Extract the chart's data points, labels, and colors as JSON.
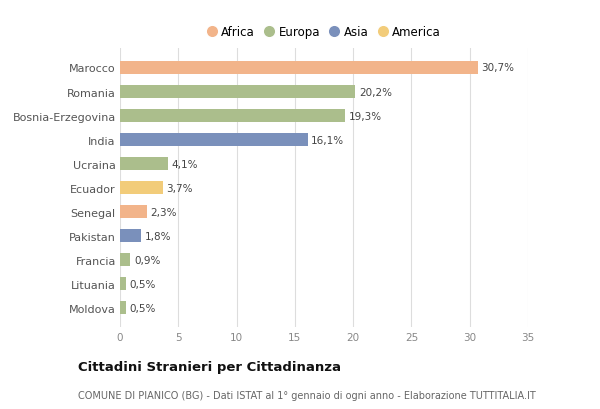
{
  "countries": [
    "Marocco",
    "Romania",
    "Bosnia-Erzegovina",
    "India",
    "Ucraina",
    "Ecuador",
    "Senegal",
    "Pakistan",
    "Francia",
    "Lituania",
    "Moldova"
  ],
  "values": [
    30.7,
    20.2,
    19.3,
    16.1,
    4.1,
    3.7,
    2.3,
    1.8,
    0.9,
    0.5,
    0.5
  ],
  "labels": [
    "30,7%",
    "20,2%",
    "19,3%",
    "16,1%",
    "4,1%",
    "3,7%",
    "2,3%",
    "1,8%",
    "0,9%",
    "0,5%",
    "0,5%"
  ],
  "continents": [
    "Africa",
    "Europa",
    "Europa",
    "Asia",
    "Europa",
    "America",
    "Africa",
    "Asia",
    "Europa",
    "Europa",
    "Europa"
  ],
  "continent_colors": {
    "Africa": "#F2B48A",
    "Europa": "#ABBE8C",
    "Asia": "#7A90BB",
    "America": "#F2CC7A"
  },
  "legend_order": [
    "Africa",
    "Europa",
    "Asia",
    "America"
  ],
  "xlim": [
    0,
    35
  ],
  "xticks": [
    0,
    5,
    10,
    15,
    20,
    25,
    30,
    35
  ],
  "title": "Cittadini Stranieri per Cittadinanza",
  "subtitle": "COMUNE DI PIANICO (BG) - Dati ISTAT al 1° gennaio di ogni anno - Elaborazione TUTTITALIA.IT",
  "bg_color": "#FFFFFF",
  "grid_color": "#DDDDDD",
  "bar_height": 0.55
}
